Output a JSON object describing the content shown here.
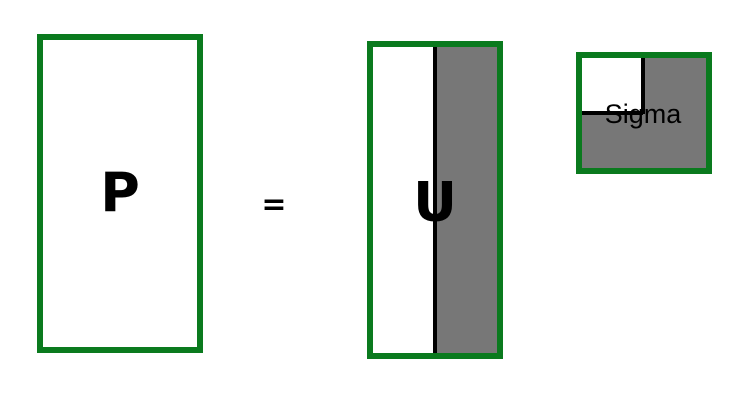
{
  "matrices": {
    "p": {
      "label": "P"
    },
    "equals": {
      "label": "="
    },
    "u": {
      "label": "U"
    },
    "sigma": {
      "label": "Sigma"
    }
  },
  "colors": {
    "border": "#0a7a1e",
    "shaded": "#777777",
    "divider": "#000000",
    "background": "#ffffff"
  }
}
